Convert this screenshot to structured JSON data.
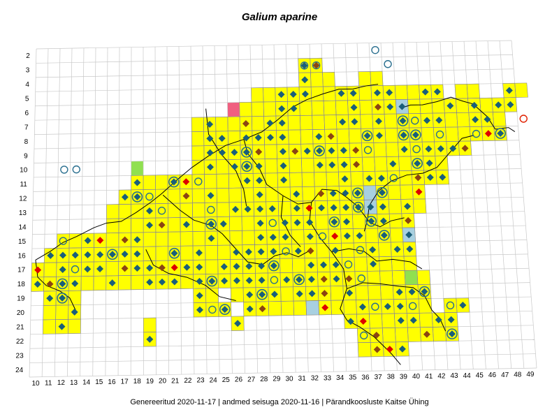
{
  "map": {
    "title": "Galium aparine",
    "footer": "Genereeritud 2020-11-17  |  andmed seisuga 2020-11-16  |  Pärandkoosluste Kaitse Ühing",
    "row_labels": [
      "2",
      "3",
      "4",
      "5",
      "6",
      "7",
      "8",
      "9",
      "10",
      "11",
      "12",
      "13",
      "14",
      "15",
      "16",
      "17",
      "18",
      "19",
      "20",
      "21",
      "22",
      "23",
      "24"
    ],
    "col_labels": [
      "10",
      "11",
      "12",
      "13",
      "14",
      "15",
      "16",
      "17",
      "18",
      "19",
      "20",
      "21",
      "22",
      "23",
      "24",
      "25",
      "26",
      "27",
      "28",
      "29",
      "30",
      "31",
      "32",
      "33",
      "34",
      "35",
      "36",
      "37",
      "38",
      "39",
      "40",
      "41",
      "42",
      "43",
      "44",
      "45",
      "46",
      "47",
      "48",
      "49"
    ],
    "colors": {
      "occupied_cell": "#ffff00",
      "grid_line": "#c8c8c8",
      "diamond_main": "#1a5f7a",
      "diamond_brown": "#8b4513",
      "diamond_red": "#dd0000",
      "ring": "#2a6f8f",
      "ring_red": "#e02000",
      "highlight_pink": "#f06080",
      "highlight_green": "#90e050",
      "highlight_blue": "#a8d0e0",
      "border_line": "#000000"
    }
  }
}
